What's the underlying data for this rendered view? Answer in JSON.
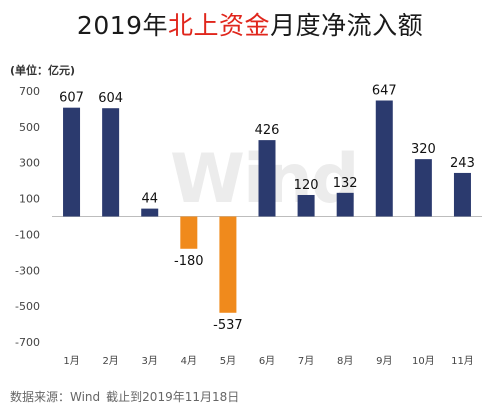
{
  "title": {
    "prefix": "2019年",
    "highlight": "北上资金",
    "suffix": "月度净流入额"
  },
  "unit_label": "(单位：亿元)",
  "watermark": "Wind",
  "source": {
    "text": "数据来源：Wind",
    "date": "截止到2019年11月18日"
  },
  "colors": {
    "positive": "#2b3a6e",
    "negative": "#f08a1c",
    "title_highlight": "#e0261c"
  },
  "chart_data": {
    "type": "bar",
    "categories": [
      "1月",
      "2月",
      "3月",
      "4月",
      "5月",
      "6月",
      "7月",
      "8月",
      "9月",
      "10月",
      "11月"
    ],
    "values": [
      607,
      604,
      44,
      -180,
      -537,
      426,
      120,
      132,
      647,
      320,
      243
    ],
    "value_labels": [
      "607",
      "604",
      "44",
      "-180",
      "-537",
      "426",
      "120",
      "132",
      "647",
      "320",
      "243"
    ],
    "yticks": [
      700,
      500,
      300,
      100,
      -100,
      -300,
      -500,
      -700
    ],
    "ylim": [
      -700,
      700
    ],
    "grid": false
  }
}
